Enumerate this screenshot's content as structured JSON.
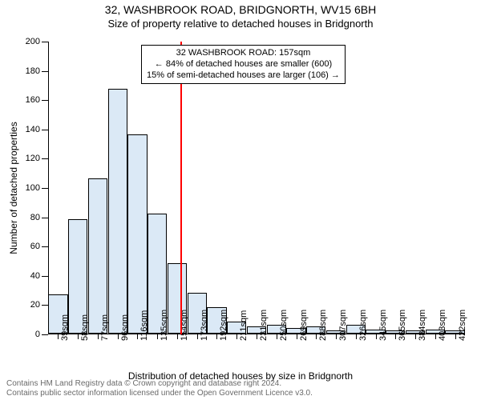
{
  "title": "32, WASHBROOK ROAD, BRIDGNORTH, WV15 6BH",
  "subtitle": "Size of property relative to detached houses in Bridgnorth",
  "chart": {
    "type": "bar",
    "ylabel": "Number of detached properties",
    "xlabel": "Distribution of detached houses by size in Bridgnorth",
    "ylim": [
      0,
      200
    ],
    "ytick_step": 20,
    "x_categories": [
      "39sqm",
      "58sqm",
      "77sqm",
      "96sqm",
      "116sqm",
      "135sqm",
      "154sqm",
      "173sqm",
      "192sqm",
      "211sqm",
      "231sqm",
      "250sqm",
      "269sqm",
      "288sqm",
      "307sqm",
      "326sqm",
      "345sqm",
      "365sqm",
      "384sqm",
      "403sqm",
      "422sqm"
    ],
    "values": [
      27,
      78,
      106,
      167,
      136,
      82,
      48,
      28,
      18,
      8,
      5,
      6,
      4,
      5,
      2,
      6,
      3,
      2,
      2,
      3,
      2
    ],
    "bar_fill": "#dbe9f6",
    "bar_stroke": "#000000",
    "bar_stroke_width": 1,
    "background_color": "#ffffff",
    "text_color": "#000000",
    "marker": {
      "position_sqm": 157,
      "color": "#ff0000"
    }
  },
  "info_box": {
    "line1": "32 WASHBROOK ROAD: 157sqm",
    "line2": "← 84% of detached houses are smaller (600)",
    "line3": "15% of semi-detached houses are larger (106) →"
  },
  "attribution": {
    "line1": "Contains HM Land Registry data © Crown copyright and database right 2024.",
    "line2": "Contains public sector information licensed under the Open Government Licence v3.0."
  }
}
